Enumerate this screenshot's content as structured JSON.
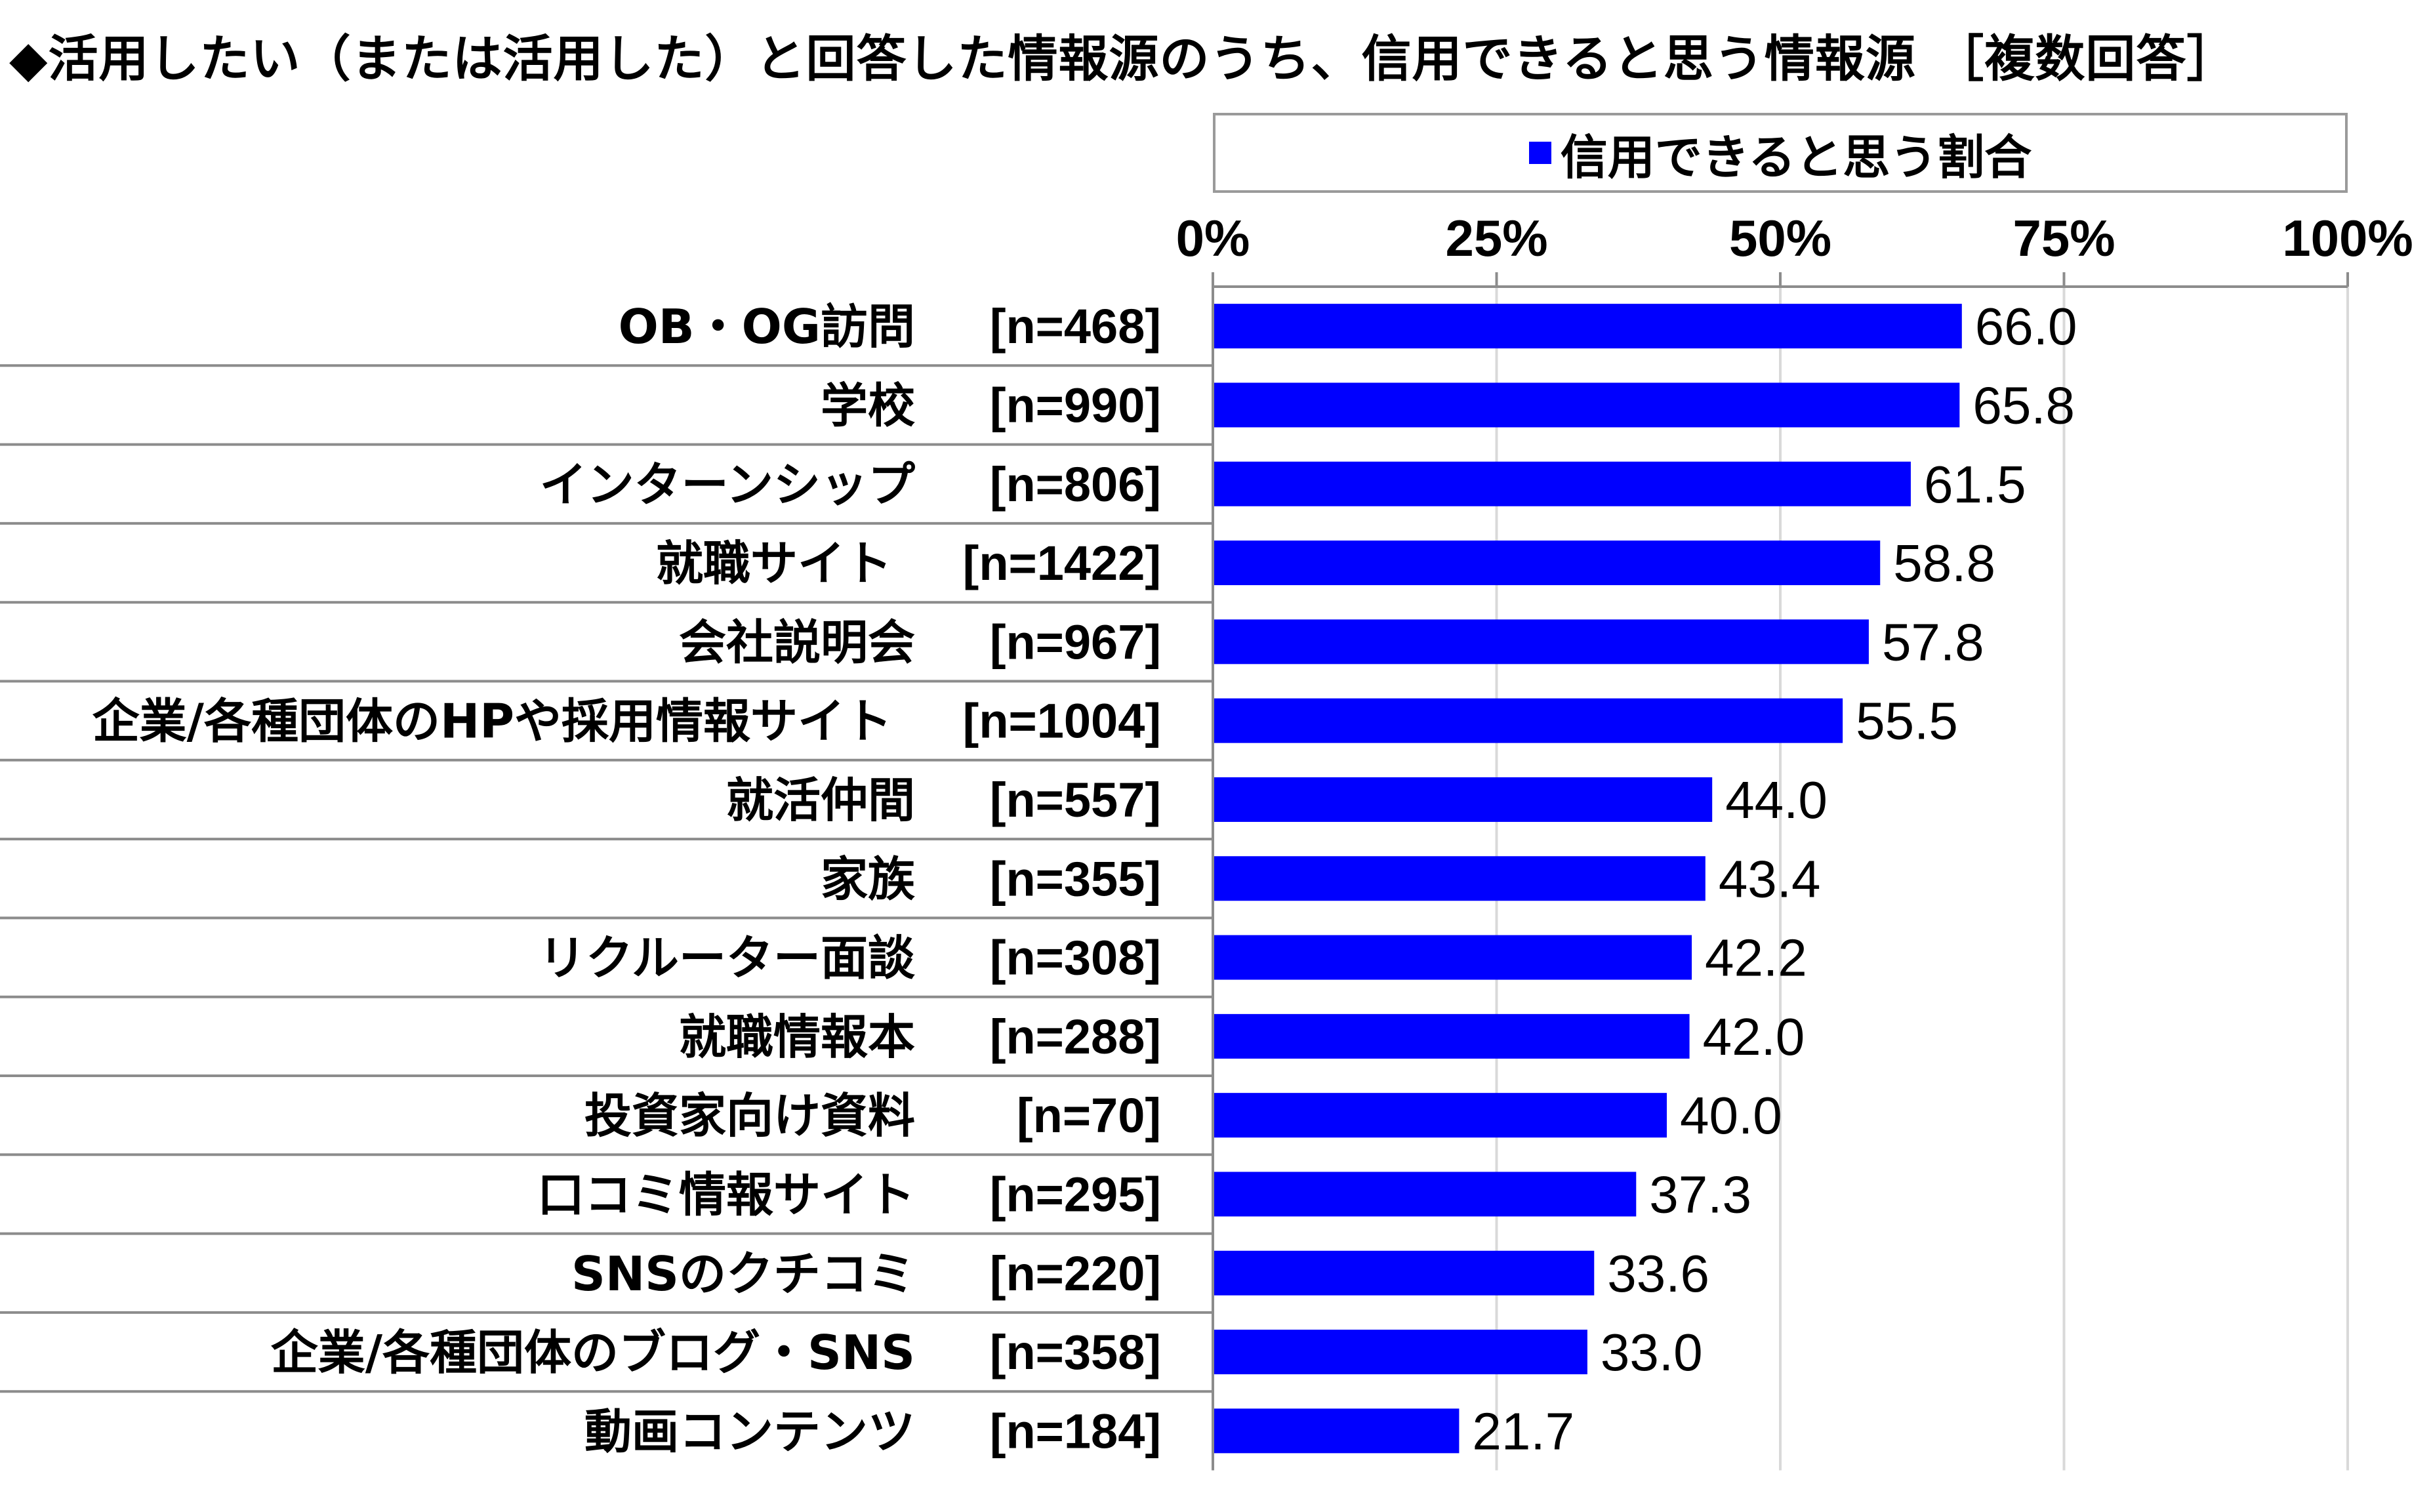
{
  "title": "◆活用したい（または活用した）と回答した情報源のうち、信用できると思う情報源 ［複数回答］",
  "chart_data": {
    "type": "bar",
    "orientation": "horizontal",
    "legend": [
      "信用できると思う割合"
    ],
    "legend_placement": "top",
    "xlim": [
      0,
      100
    ],
    "xticks": [
      "0%",
      "25%",
      "50%",
      "75%",
      "100%"
    ],
    "grid": true,
    "color": "#0000ff",
    "categories": [
      {
        "label": "OB・OG訪問",
        "n": "[n=468]",
        "value": 66.0,
        "value_label": "66.0"
      },
      {
        "label": "学校",
        "n": "[n=990]",
        "value": 65.8,
        "value_label": "65.8"
      },
      {
        "label": "インターンシップ",
        "n": "[n=806]",
        "value": 61.5,
        "value_label": "61.5"
      },
      {
        "label": "就職サイト",
        "n": "[n=1422]",
        "value": 58.8,
        "value_label": "58.8"
      },
      {
        "label": "会社説明会",
        "n": "[n=967]",
        "value": 57.8,
        "value_label": "57.8"
      },
      {
        "label": "企業/各種団体のHPや採用情報サイト",
        "n": "[n=1004]",
        "value": 55.5,
        "value_label": "55.5"
      },
      {
        "label": "就活仲間",
        "n": "[n=557]",
        "value": 44.0,
        "value_label": "44.0"
      },
      {
        "label": "家族",
        "n": "[n=355]",
        "value": 43.4,
        "value_label": "43.4"
      },
      {
        "label": "リクルーター面談",
        "n": "[n=308]",
        "value": 42.2,
        "value_label": "42.2"
      },
      {
        "label": "就職情報本",
        "n": "[n=288]",
        "value": 42.0,
        "value_label": "42.0"
      },
      {
        "label": "投資家向け資料",
        "n": "[n=70]",
        "value": 40.0,
        "value_label": "40.0"
      },
      {
        "label": "口コミ情報サイト",
        "n": "[n=295]",
        "value": 37.3,
        "value_label": "37.3"
      },
      {
        "label": "SNSのクチコミ",
        "n": "[n=220]",
        "value": 33.6,
        "value_label": "33.6"
      },
      {
        "label": "企業/各種団体のブログ・SNS",
        "n": "[n=358]",
        "value": 33.0,
        "value_label": "33.0"
      },
      {
        "label": "動画コンテンツ",
        "n": "[n=184]",
        "value": 21.7,
        "value_label": "21.7"
      }
    ]
  }
}
